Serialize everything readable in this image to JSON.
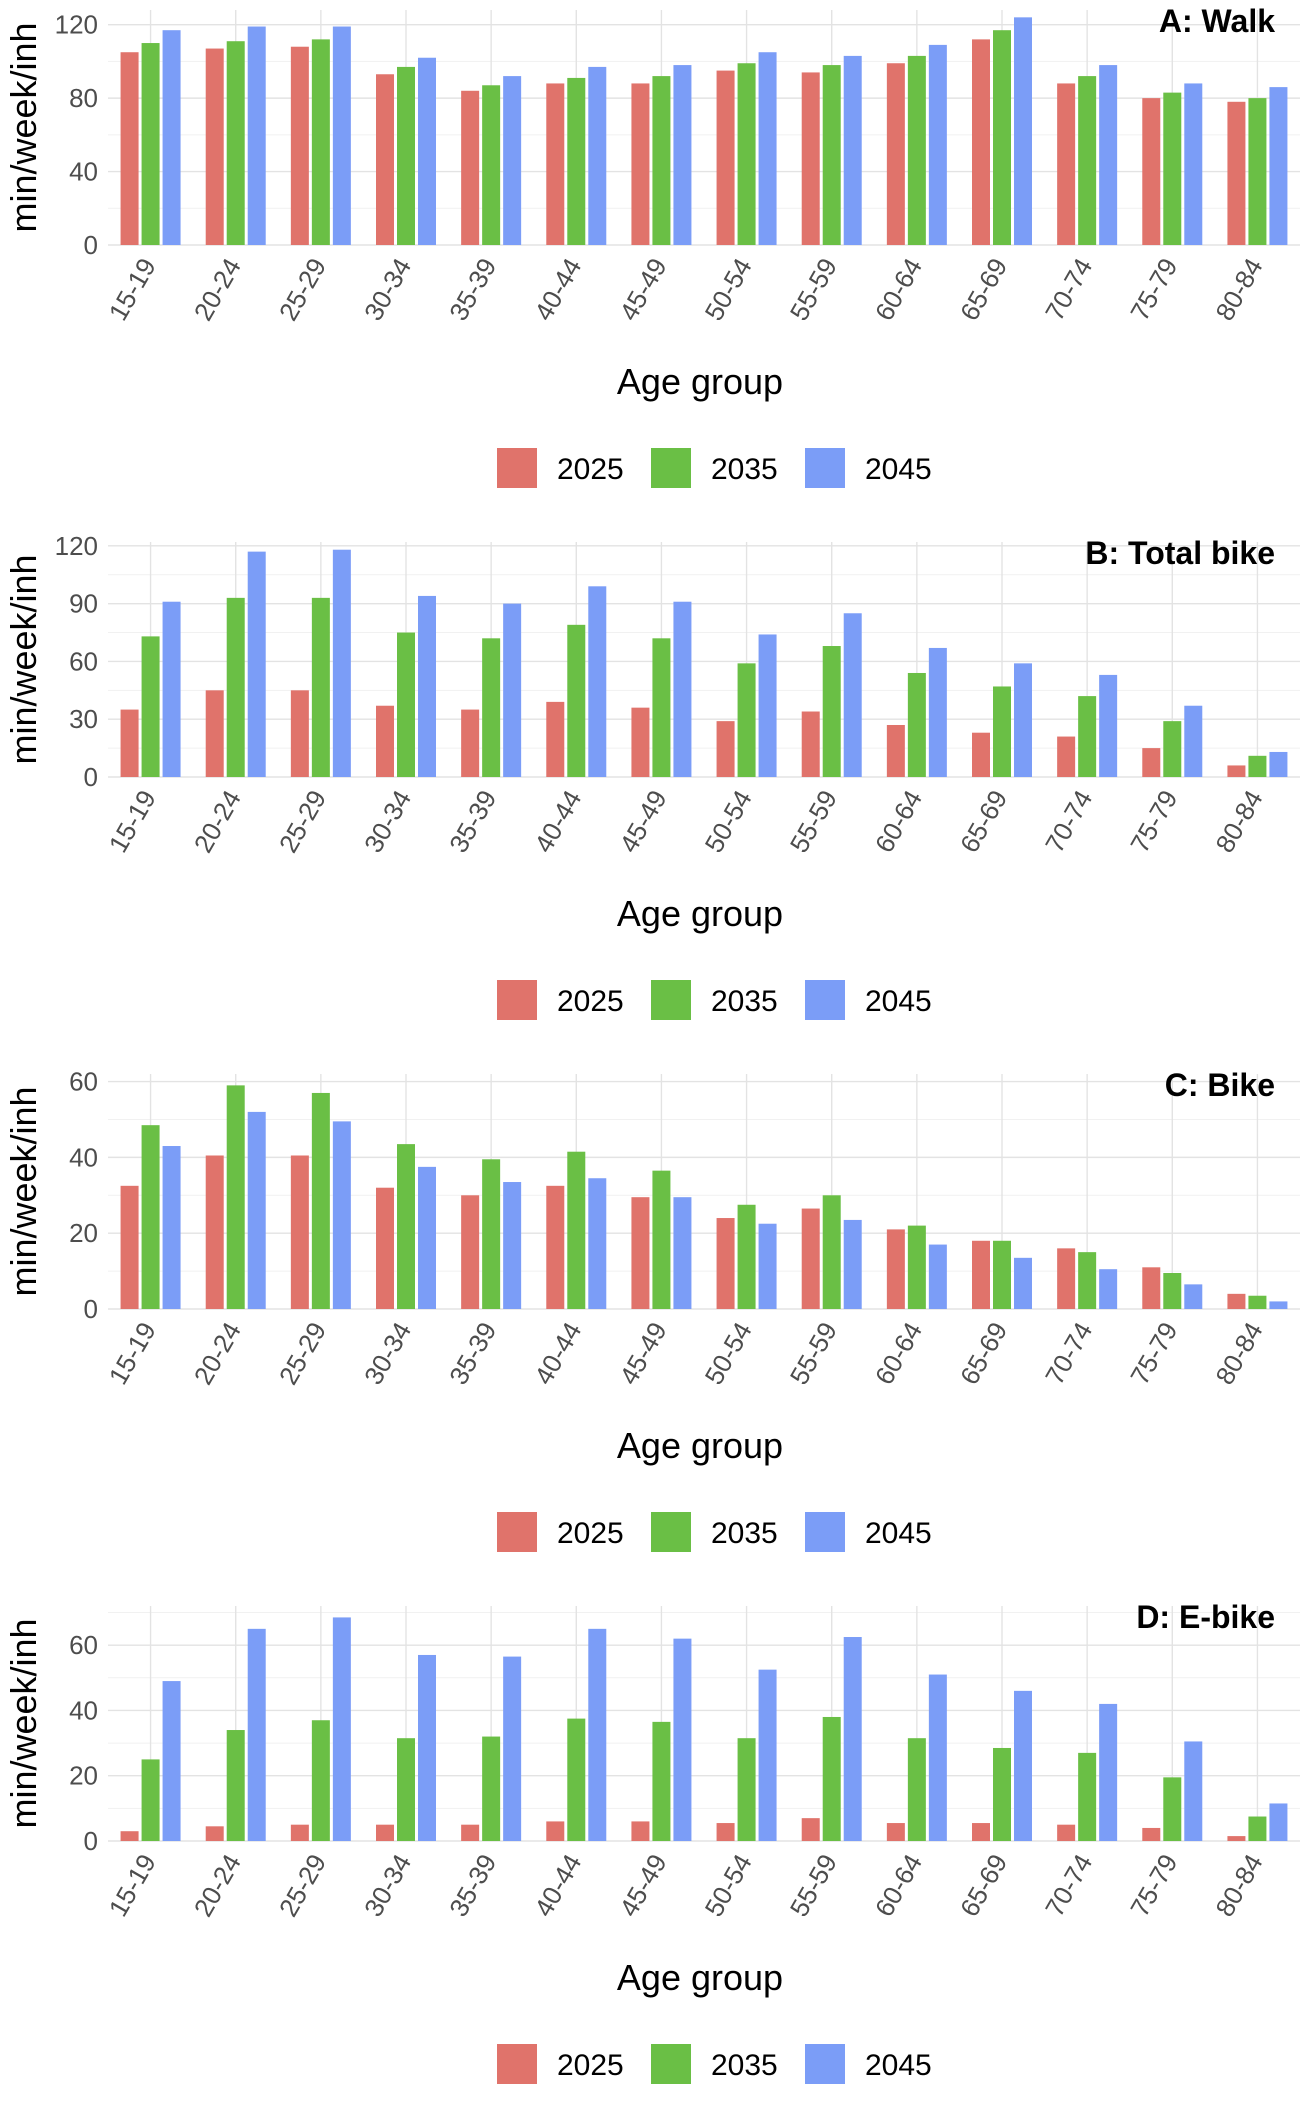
{
  "chart_data": [
    {
      "type": "bar",
      "title": "A: Walk",
      "xlabel": "Age group",
      "ylabel": "min/week/inh",
      "categories": [
        "15-19",
        "20-24",
        "25-29",
        "30-34",
        "35-39",
        "40-44",
        "45-49",
        "50-54",
        "55-59",
        "60-64",
        "65-69",
        "70-74",
        "75-79",
        "80-84"
      ],
      "series": [
        {
          "name": "2025",
          "color": "#e0736b",
          "values": [
            105,
            107,
            108,
            93,
            84,
            88,
            88,
            95,
            94,
            99,
            112,
            88,
            80,
            78
          ]
        },
        {
          "name": "2035",
          "color": "#6abf45",
          "values": [
            110,
            111,
            112,
            97,
            87,
            91,
            92,
            99,
            98,
            103,
            117,
            92,
            83,
            80
          ]
        },
        {
          "name": "2045",
          "color": "#7b9df7",
          "values": [
            117,
            119,
            119,
            102,
            92,
            97,
            98,
            105,
            103,
            109,
            124,
            98,
            88,
            86
          ]
        }
      ],
      "ylim": [
        0,
        128
      ],
      "yticks": [
        0,
        40,
        80,
        120
      ],
      "grid": true,
      "legend_position": "bottom"
    },
    {
      "type": "bar",
      "title": "B: Total bike",
      "xlabel": "Age group",
      "ylabel": "min/week/inh",
      "categories": [
        "15-19",
        "20-24",
        "25-29",
        "30-34",
        "35-39",
        "40-44",
        "45-49",
        "50-54",
        "55-59",
        "60-64",
        "65-69",
        "70-74",
        "75-79",
        "80-84"
      ],
      "series": [
        {
          "name": "2025",
          "color": "#e0736b",
          "values": [
            35,
            45,
            45,
            37,
            35,
            39,
            36,
            29,
            34,
            27,
            23,
            21,
            15,
            6
          ]
        },
        {
          "name": "2035",
          "color": "#6abf45",
          "values": [
            73,
            93,
            93,
            75,
            72,
            79,
            72,
            59,
            68,
            54,
            47,
            42,
            29,
            11
          ]
        },
        {
          "name": "2045",
          "color": "#7b9df7",
          "values": [
            91,
            117,
            118,
            94,
            90,
            99,
            91,
            74,
            85,
            67,
            59,
            53,
            37,
            13
          ]
        }
      ],
      "ylim": [
        0,
        122
      ],
      "yticks": [
        0,
        30,
        60,
        90,
        120
      ],
      "grid": true,
      "legend_position": "bottom"
    },
    {
      "type": "bar",
      "title": "C: Bike",
      "xlabel": "Age group",
      "ylabel": "min/week/inh",
      "categories": [
        "15-19",
        "20-24",
        "25-29",
        "30-34",
        "35-39",
        "40-44",
        "45-49",
        "50-54",
        "55-59",
        "60-64",
        "65-69",
        "70-74",
        "75-79",
        "80-84"
      ],
      "series": [
        {
          "name": "2025",
          "color": "#e0736b",
          "values": [
            32.5,
            40.5,
            40.5,
            32,
            30,
            32.5,
            29.5,
            24,
            26.5,
            21,
            18,
            16,
            11,
            4
          ]
        },
        {
          "name": "2035",
          "color": "#6abf45",
          "values": [
            48.5,
            59,
            57,
            43.5,
            39.5,
            41.5,
            36.5,
            27.5,
            30,
            22,
            18,
            15,
            9.5,
            3.5
          ]
        },
        {
          "name": "2045",
          "color": "#7b9df7",
          "values": [
            43,
            52,
            49.5,
            37.5,
            33.5,
            34.5,
            29.5,
            22.5,
            23.5,
            17,
            13.5,
            10.5,
            6.5,
            2
          ]
        }
      ],
      "ylim": [
        0,
        62
      ],
      "yticks": [
        0,
        20,
        40,
        60
      ],
      "grid": true,
      "legend_position": "bottom"
    },
    {
      "type": "bar",
      "title": "D: E-bike",
      "xlabel": "Age group",
      "ylabel": "min/week/inh",
      "categories": [
        "15-19",
        "20-24",
        "25-29",
        "30-34",
        "35-39",
        "40-44",
        "45-49",
        "50-54",
        "55-59",
        "60-64",
        "65-69",
        "70-74",
        "75-79",
        "80-84"
      ],
      "series": [
        {
          "name": "2025",
          "color": "#e0736b",
          "values": [
            3,
            4.5,
            5,
            5,
            5,
            6,
            6,
            5.5,
            7,
            5.5,
            5.5,
            5,
            4,
            1.5
          ]
        },
        {
          "name": "2035",
          "color": "#6abf45",
          "values": [
            25,
            34,
            37,
            31.5,
            32,
            37.5,
            36.5,
            31.5,
            38,
            31.5,
            28.5,
            27,
            19.5,
            7.5
          ]
        },
        {
          "name": "2045",
          "color": "#7b9df7",
          "values": [
            49,
            65,
            68.5,
            57,
            56.5,
            65,
            62,
            52.5,
            62.5,
            51,
            46,
            42,
            30.5,
            11.5
          ]
        }
      ],
      "ylim": [
        0,
        72
      ],
      "yticks": [
        0,
        20,
        40,
        60
      ],
      "grid": true,
      "legend_position": "bottom"
    }
  ]
}
